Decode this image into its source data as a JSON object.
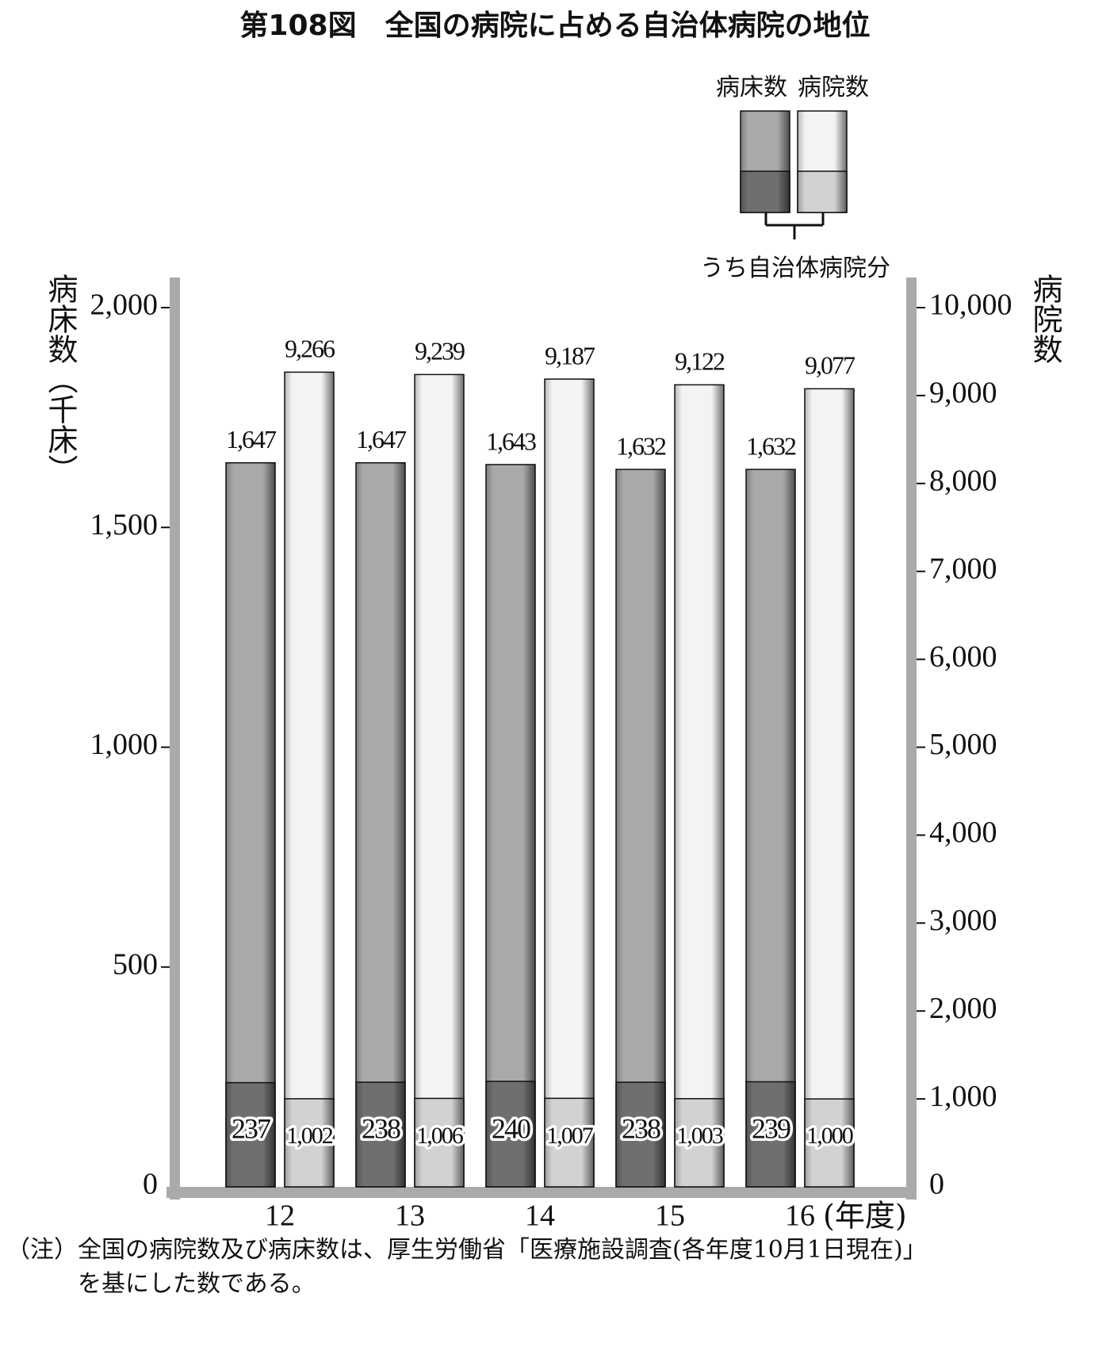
{
  "chart_data": {
    "type": "bar",
    "title": "第108図　全国の病院に占める自治体病院の地位",
    "categories": [
      "12",
      "13",
      "14",
      "15",
      "16"
    ],
    "x_unit": "(年度)",
    "y_label": "病床数（千床）",
    "y2_label": "病院数",
    "legend_note": "うち自治体病院分",
    "series": [
      {
        "name": "病床数",
        "color": "#a9a9a9",
        "values": [
          1647,
          1647,
          1643,
          1632,
          1632
        ],
        "value_labels": [
          "1,647",
          "1,647",
          "1,643",
          "1,632",
          "1,632"
        ]
      },
      {
        "color": "#6f6f6f",
        "values": [
          237,
          238,
          240,
          238,
          239
        ]
      },
      {
        "name": "病院数",
        "color": "#f3f3f3",
        "axis": "y2",
        "values": [
          9266,
          9239,
          9187,
          9122,
          9077
        ],
        "value_labels": [
          "9,266",
          "9,239",
          "9,187",
          "9,122",
          "9,077"
        ]
      },
      {
        "color": "#d2d2d2",
        "axis": "y2",
        "values": [
          1002,
          1006,
          1007,
          1003,
          1000
        ],
        "value_labels": [
          "1,002",
          "1,006",
          "1,007",
          "1,003",
          "1,000"
        ]
      }
    ],
    "ylim": [
      0,
      2000
    ],
    "yticks": [
      0,
      500,
      {
        "value": 1000,
        "label": "1,000"
      },
      {
        "value": 1500,
        "label": "1,500"
      },
      {
        "value": 2000,
        "label": "2,000"
      }
    ],
    "y2lim": [
      0,
      10000
    ],
    "y2ticks": [
      0,
      {
        "value": 1000,
        "label": "1,000"
      },
      {
        "value": 2000,
        "label": "2,000"
      },
      {
        "value": 3000,
        "label": "3,000"
      },
      {
        "value": 4000,
        "label": "4,000"
      },
      {
        "value": 5000,
        "label": "5,000"
      },
      {
        "value": 6000,
        "label": "6,000"
      },
      {
        "value": 7000,
        "label": "7,000"
      },
      {
        "value": 8000,
        "label": "8,000"
      },
      {
        "value": 9000,
        "label": "9,000"
      },
      {
        "value": 10000,
        "label": "10,000"
      }
    ],
    "note_label": "（注）",
    "note": [
      "全国の病院数及び病床数は、厚生労働省「医療施設調査(各年度10月1日現在)」",
      "を基にした数である。"
    ]
  }
}
